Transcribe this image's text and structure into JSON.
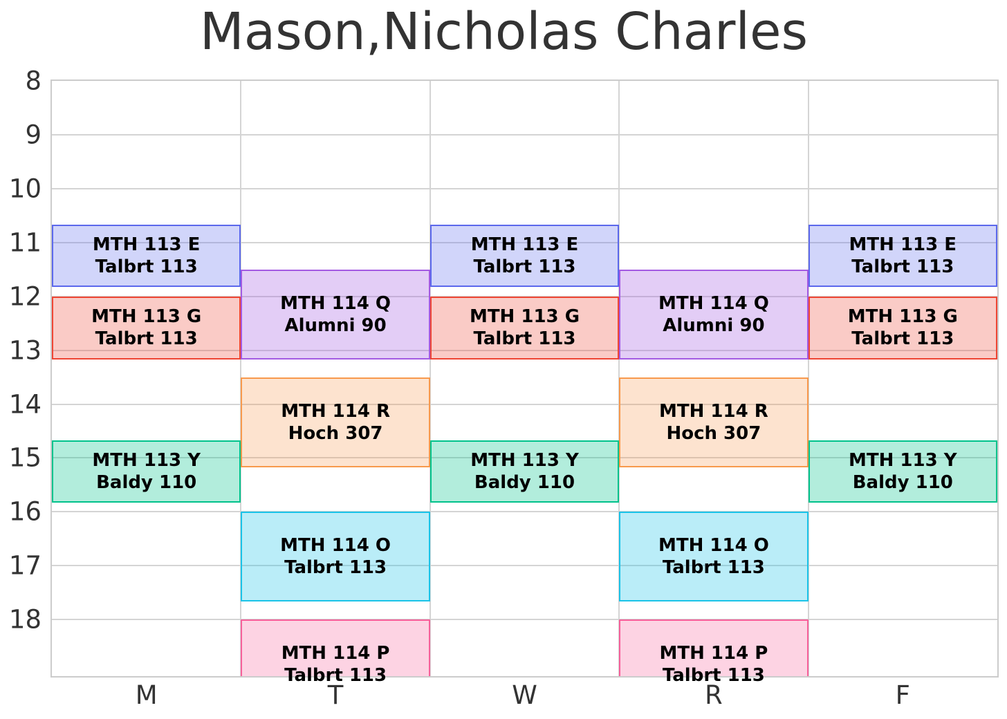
{
  "title": "Mason,Nicholas Charles",
  "colors": {
    "background": "#ffffff",
    "grid": "#d4d4d4",
    "spine": "#cccccc",
    "title_text": "#333333",
    "tick_text": "#333333",
    "event_text": "#000000"
  },
  "chart_data": {
    "type": "schedule-timetable",
    "title": "Mason,Nicholas Charles",
    "x_axis": {
      "categories": [
        "M",
        "T",
        "W",
        "R",
        "F"
      ]
    },
    "y_axis": {
      "ticks": [
        8,
        9,
        10,
        11,
        12,
        13,
        14,
        15,
        16,
        17,
        18
      ],
      "range": [
        8,
        19.05
      ],
      "unit": "hour-of-day",
      "direction": "down"
    },
    "grid": true,
    "events": [
      {
        "course": "MTH 113 E",
        "room": "Talbrt 113",
        "days": [
          "M",
          "W",
          "F"
        ],
        "start_hour": 10.67,
        "end_hour": 11.83,
        "border_color": "#5b68ec",
        "fill_color": "rgba(91,104,236,0.28)"
      },
      {
        "course": "MTH 113 G",
        "room": "Talbrt 113",
        "days": [
          "M",
          "W",
          "F"
        ],
        "start_hour": 12.0,
        "end_hour": 13.17,
        "border_color": "#ee4533",
        "fill_color": "rgba(238,69,51,0.28)"
      },
      {
        "course": "MTH 114 Q",
        "room": "Alumni 90",
        "days": [
          "T",
          "R"
        ],
        "start_hour": 11.5,
        "end_hour": 13.17,
        "border_color": "#a35ae2",
        "fill_color": "rgba(163,90,226,0.30)"
      },
      {
        "course": "MTH 114 R",
        "room": "Hoch 307",
        "days": [
          "T",
          "R"
        ],
        "start_hour": 13.5,
        "end_hour": 15.17,
        "border_color": "#f8994c",
        "fill_color": "rgba(248,153,76,0.27)"
      },
      {
        "course": "MTH 113 Y",
        "room": "Baldy 110",
        "days": [
          "M",
          "W",
          "F"
        ],
        "start_hour": 14.67,
        "end_hour": 15.83,
        "border_color": "#00c28b",
        "fill_color": "rgba(0,194,139,0.30)"
      },
      {
        "course": "MTH 114 O",
        "room": "Talbrt 113",
        "days": [
          "T",
          "R"
        ],
        "start_hour": 16.0,
        "end_hour": 17.67,
        "border_color": "#1ac3e8",
        "fill_color": "rgba(26,195,232,0.30)"
      },
      {
        "course": "MTH 114 P",
        "room": "Talbrt 113",
        "days": [
          "T",
          "R"
        ],
        "start_hour": 18.0,
        "end_hour": 19.67,
        "border_color": "#f7609a",
        "fill_color": "rgba(247,96,154,0.28)"
      }
    ]
  }
}
